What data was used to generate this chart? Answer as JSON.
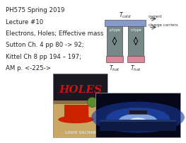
{
  "bg_color": "#ffffff",
  "text_lines": [
    "PH575 Spring 2019",
    "Lecture #10",
    "Electrons, Holes; Effective mass",
    "Sutton Ch. 4 pp 80 -> 92;",
    "Kittel Ch 8 pp 194 – 197;",
    "AM p. <-225->"
  ],
  "text_color": "#222222",
  "text_fontsize": 6.2,
  "cold_bar_color": "#8899cc",
  "hot_bar_color": "#dd8899",
  "semiconductor_color": "#778888",
  "p_type_label": "p-type",
  "n_type_label": "n-type",
  "current_label": "current",
  "charge_label": "charge carriers"
}
